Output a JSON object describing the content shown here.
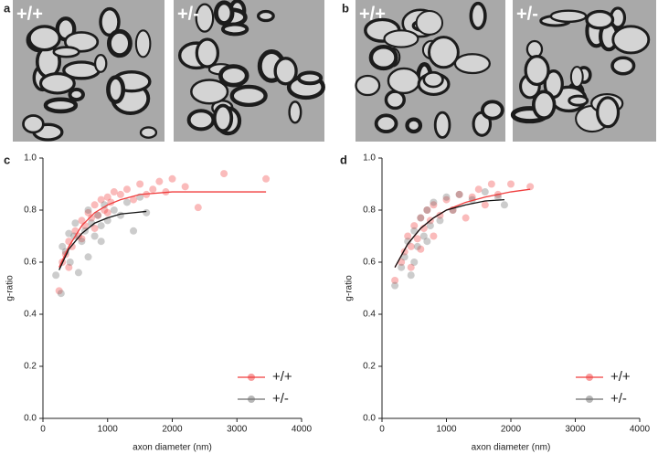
{
  "images": [
    {
      "panel": "a",
      "labels": [
        "+/+",
        "+/-"
      ]
    },
    {
      "panel": "b",
      "labels": [
        "+/+",
        "+/-"
      ]
    }
  ],
  "chart_data": [
    {
      "type": "scatter",
      "panel": "c",
      "xlabel": "axon diameter (nm)",
      "ylabel": "g-ratio",
      "xlim": [
        0,
        4000
      ],
      "ylim": [
        0,
        1
      ],
      "xticks": [
        0,
        1000,
        2000,
        3000,
        4000
      ],
      "yticks": [
        {
          "value": 0,
          "label": "0.0"
        },
        0.2,
        0.4,
        0.6,
        0.8,
        {
          "value": 1,
          "label": "1.0"
        }
      ],
      "series": [
        {
          "name": "+/+",
          "color": "#f03c3c",
          "x": [
            250,
            300,
            350,
            400,
            450,
            500,
            550,
            600,
            650,
            700,
            750,
            800,
            850,
            900,
            950,
            1000,
            1050,
            1100,
            1200,
            1300,
            1400,
            1500,
            1600,
            1700,
            1800,
            1900,
            2000,
            2200,
            2400,
            2800,
            3450,
            600,
            800,
            1000,
            400
          ],
          "values": [
            0.49,
            0.6,
            0.63,
            0.68,
            0.66,
            0.72,
            0.7,
            0.76,
            0.74,
            0.79,
            0.77,
            0.82,
            0.78,
            0.84,
            0.8,
            0.85,
            0.83,
            0.87,
            0.86,
            0.88,
            0.84,
            0.9,
            0.86,
            0.88,
            0.91,
            0.87,
            0.92,
            0.89,
            0.81,
            0.94,
            0.92,
            0.69,
            0.73,
            0.79,
            0.58
          ],
          "fit": {
            "x": [
              250,
              400,
              600,
              800,
              1000,
              1200,
              1500,
              2000,
              2500,
              3000,
              3450
            ],
            "values": [
              0.58,
              0.66,
              0.74,
              0.79,
              0.82,
              0.84,
              0.86,
              0.87,
              0.87,
              0.87,
              0.87
            ]
          }
        },
        {
          "name": "+/-",
          "color": "#6e6e6e",
          "x": [
            200,
            280,
            350,
            420,
            480,
            550,
            600,
            650,
            700,
            750,
            800,
            850,
            900,
            950,
            1000,
            1100,
            1200,
            1300,
            1400,
            1500,
            1600,
            300,
            500,
            700,
            900,
            400
          ],
          "values": [
            0.55,
            0.48,
            0.64,
            0.6,
            0.7,
            0.56,
            0.68,
            0.72,
            0.62,
            0.75,
            0.7,
            0.78,
            0.74,
            0.82,
            0.76,
            0.8,
            0.78,
            0.83,
            0.72,
            0.85,
            0.79,
            0.66,
            0.75,
            0.8,
            0.68,
            0.71
          ],
          "fit": {
            "x": [
              250,
              400,
              600,
              800,
              1000,
              1200,
              1400,
              1600
            ],
            "values": [
              0.57,
              0.65,
              0.71,
              0.75,
              0.77,
              0.785,
              0.79,
              0.795
            ]
          }
        }
      ]
    },
    {
      "type": "scatter",
      "panel": "d",
      "xlabel": "axon diameter (nm)",
      "ylabel": "g-ratio",
      "xlim": [
        0,
        4000
      ],
      "ylim": [
        0,
        1
      ],
      "xticks": [
        0,
        1000,
        2000,
        3000,
        4000
      ],
      "yticks": [
        {
          "value": 0,
          "label": "0.0"
        },
        0.2,
        0.4,
        0.6,
        0.8,
        {
          "value": 1,
          "label": "1.0"
        }
      ],
      "series": [
        {
          "name": "+/+",
          "color": "#f03c3c",
          "x": [
            200,
            300,
            350,
            400,
            450,
            500,
            550,
            600,
            650,
            700,
            750,
            800,
            900,
            1000,
            1100,
            1200,
            1300,
            1400,
            1500,
            1600,
            1700,
            1800,
            2000,
            2300,
            450,
            600,
            800
          ],
          "values": [
            0.53,
            0.6,
            0.64,
            0.7,
            0.66,
            0.74,
            0.69,
            0.77,
            0.73,
            0.8,
            0.76,
            0.82,
            0.78,
            0.84,
            0.8,
            0.86,
            0.77,
            0.85,
            0.88,
            0.82,
            0.9,
            0.86,
            0.9,
            0.89,
            0.58,
            0.65,
            0.7
          ],
          "fit": {
            "x": [
              200,
              400,
              600,
              800,
              1000,
              1300,
              1600,
              2000,
              2300
            ],
            "values": [
              0.58,
              0.67,
              0.73,
              0.77,
              0.8,
              0.83,
              0.85,
              0.87,
              0.88
            ]
          }
        },
        {
          "name": "+/-",
          "color": "#6e6e6e",
          "x": [
            200,
            300,
            350,
            400,
            450,
            500,
            550,
            600,
            650,
            700,
            750,
            800,
            900,
            1000,
            1100,
            1200,
            1400,
            1600,
            1800,
            1900,
            500,
            700
          ],
          "values": [
            0.51,
            0.58,
            0.62,
            0.68,
            0.55,
            0.72,
            0.66,
            0.77,
            0.7,
            0.8,
            0.74,
            0.83,
            0.76,
            0.85,
            0.8,
            0.86,
            0.84,
            0.87,
            0.85,
            0.82,
            0.6,
            0.68
          ],
          "fit": {
            "x": [
              200,
              400,
              600,
              800,
              1000,
              1300,
              1600,
              1900
            ],
            "values": [
              0.58,
              0.67,
              0.73,
              0.77,
              0.8,
              0.82,
              0.835,
              0.84
            ]
          }
        }
      ]
    }
  ]
}
